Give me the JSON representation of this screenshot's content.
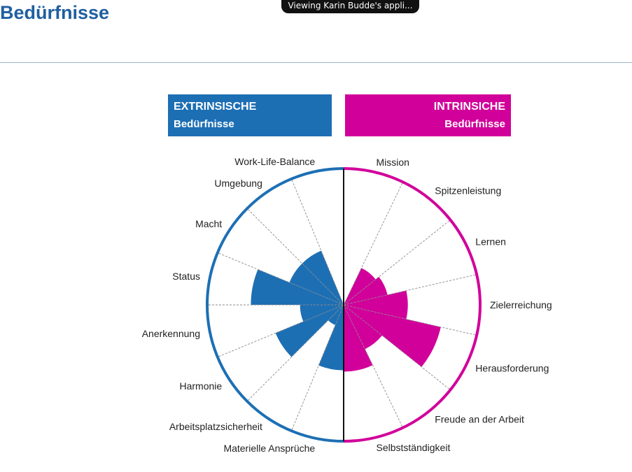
{
  "page": {
    "title": "Bedürfnisse",
    "notification": "Viewing Karin Budde's appli..."
  },
  "legend": {
    "extrinsic": {
      "line1": "EXTRINSISCHE",
      "line2": "Bedürfnisse",
      "color": "#1d6fb4"
    },
    "intrinsic": {
      "line1": "INTRINSICHE",
      "line2": "Bedürfnisse",
      "color": "#d1009a"
    }
  },
  "chart_data": {
    "type": "polar-bar",
    "max": 1.0,
    "grid": true,
    "sectors": [
      {
        "label": "Mission",
        "group": "intrinsic",
        "value": 0.0
      },
      {
        "label": "Spitzenleistung",
        "group": "intrinsic",
        "value": 0.3
      },
      {
        "label": "Lernen",
        "group": "intrinsic",
        "value": 0.33
      },
      {
        "label": "Zielerreichung",
        "group": "intrinsic",
        "value": 0.47
      },
      {
        "label": "Herausforderung",
        "group": "intrinsic",
        "value": 0.73
      },
      {
        "label": "Freude an der Arbeit",
        "group": "intrinsic",
        "value": 0.36
      },
      {
        "label": "Selbstständigkeit",
        "group": "intrinsic",
        "value": 0.49
      },
      {
        "label": "Materielle Ansprüche",
        "group": "extrinsic",
        "value": 0.48
      },
      {
        "label": "Arbeitsplatzsicherheit",
        "group": "extrinsic",
        "value": 0.16
      },
      {
        "label": "Harmonie",
        "group": "extrinsic",
        "value": 0.54
      },
      {
        "label": "Anerkennung",
        "group": "extrinsic",
        "value": 0.32
      },
      {
        "label": "Status",
        "group": "extrinsic",
        "value": 0.68
      },
      {
        "label": "Macht",
        "group": "extrinsic",
        "value": 0.43
      },
      {
        "label": "Umgebung",
        "group": "extrinsic",
        "value": 0.43
      },
      {
        "label": "Work-Life-Balance",
        "group": "extrinsic",
        "value": 0.0
      }
    ]
  }
}
